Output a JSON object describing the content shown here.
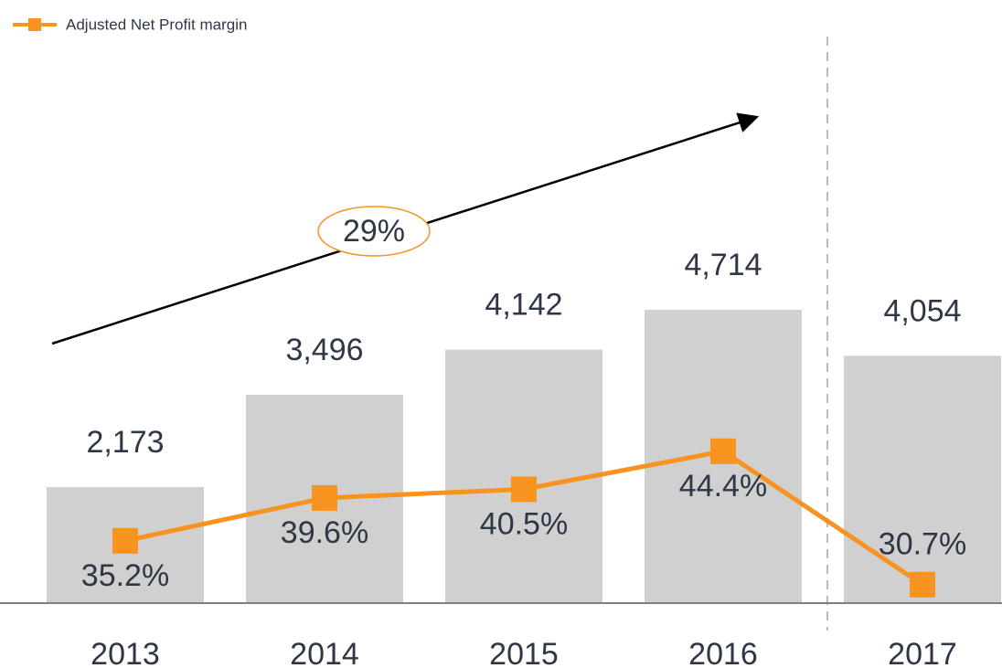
{
  "chart_data": {
    "type": "bar",
    "categories": [
      "2013",
      "2014",
      "2015",
      "2016",
      "2017"
    ],
    "series": [
      {
        "type": "bar",
        "color": "#d0d0d0",
        "values": [
          2173,
          3496,
          4142,
          4714,
          4054
        ],
        "value_labels": [
          "2,173",
          "3,496",
          "4,142",
          "4,714",
          "4,054"
        ]
      },
      {
        "type": "line",
        "name": "Adjusted Net Profit margin",
        "axis": "y2",
        "color": "#f7931e",
        "values": [
          35.2,
          39.6,
          40.5,
          44.4,
          30.7
        ],
        "value_labels": [
          "35.2%",
          "39.6%",
          "40.5%",
          "44.4%",
          "30.7%"
        ]
      }
    ],
    "ylim": [
      509,
      8630
    ],
    "y2lim": [
      28.8,
      87
    ],
    "annotations": [
      "29%"
    ],
    "legend": "top-left"
  }
}
